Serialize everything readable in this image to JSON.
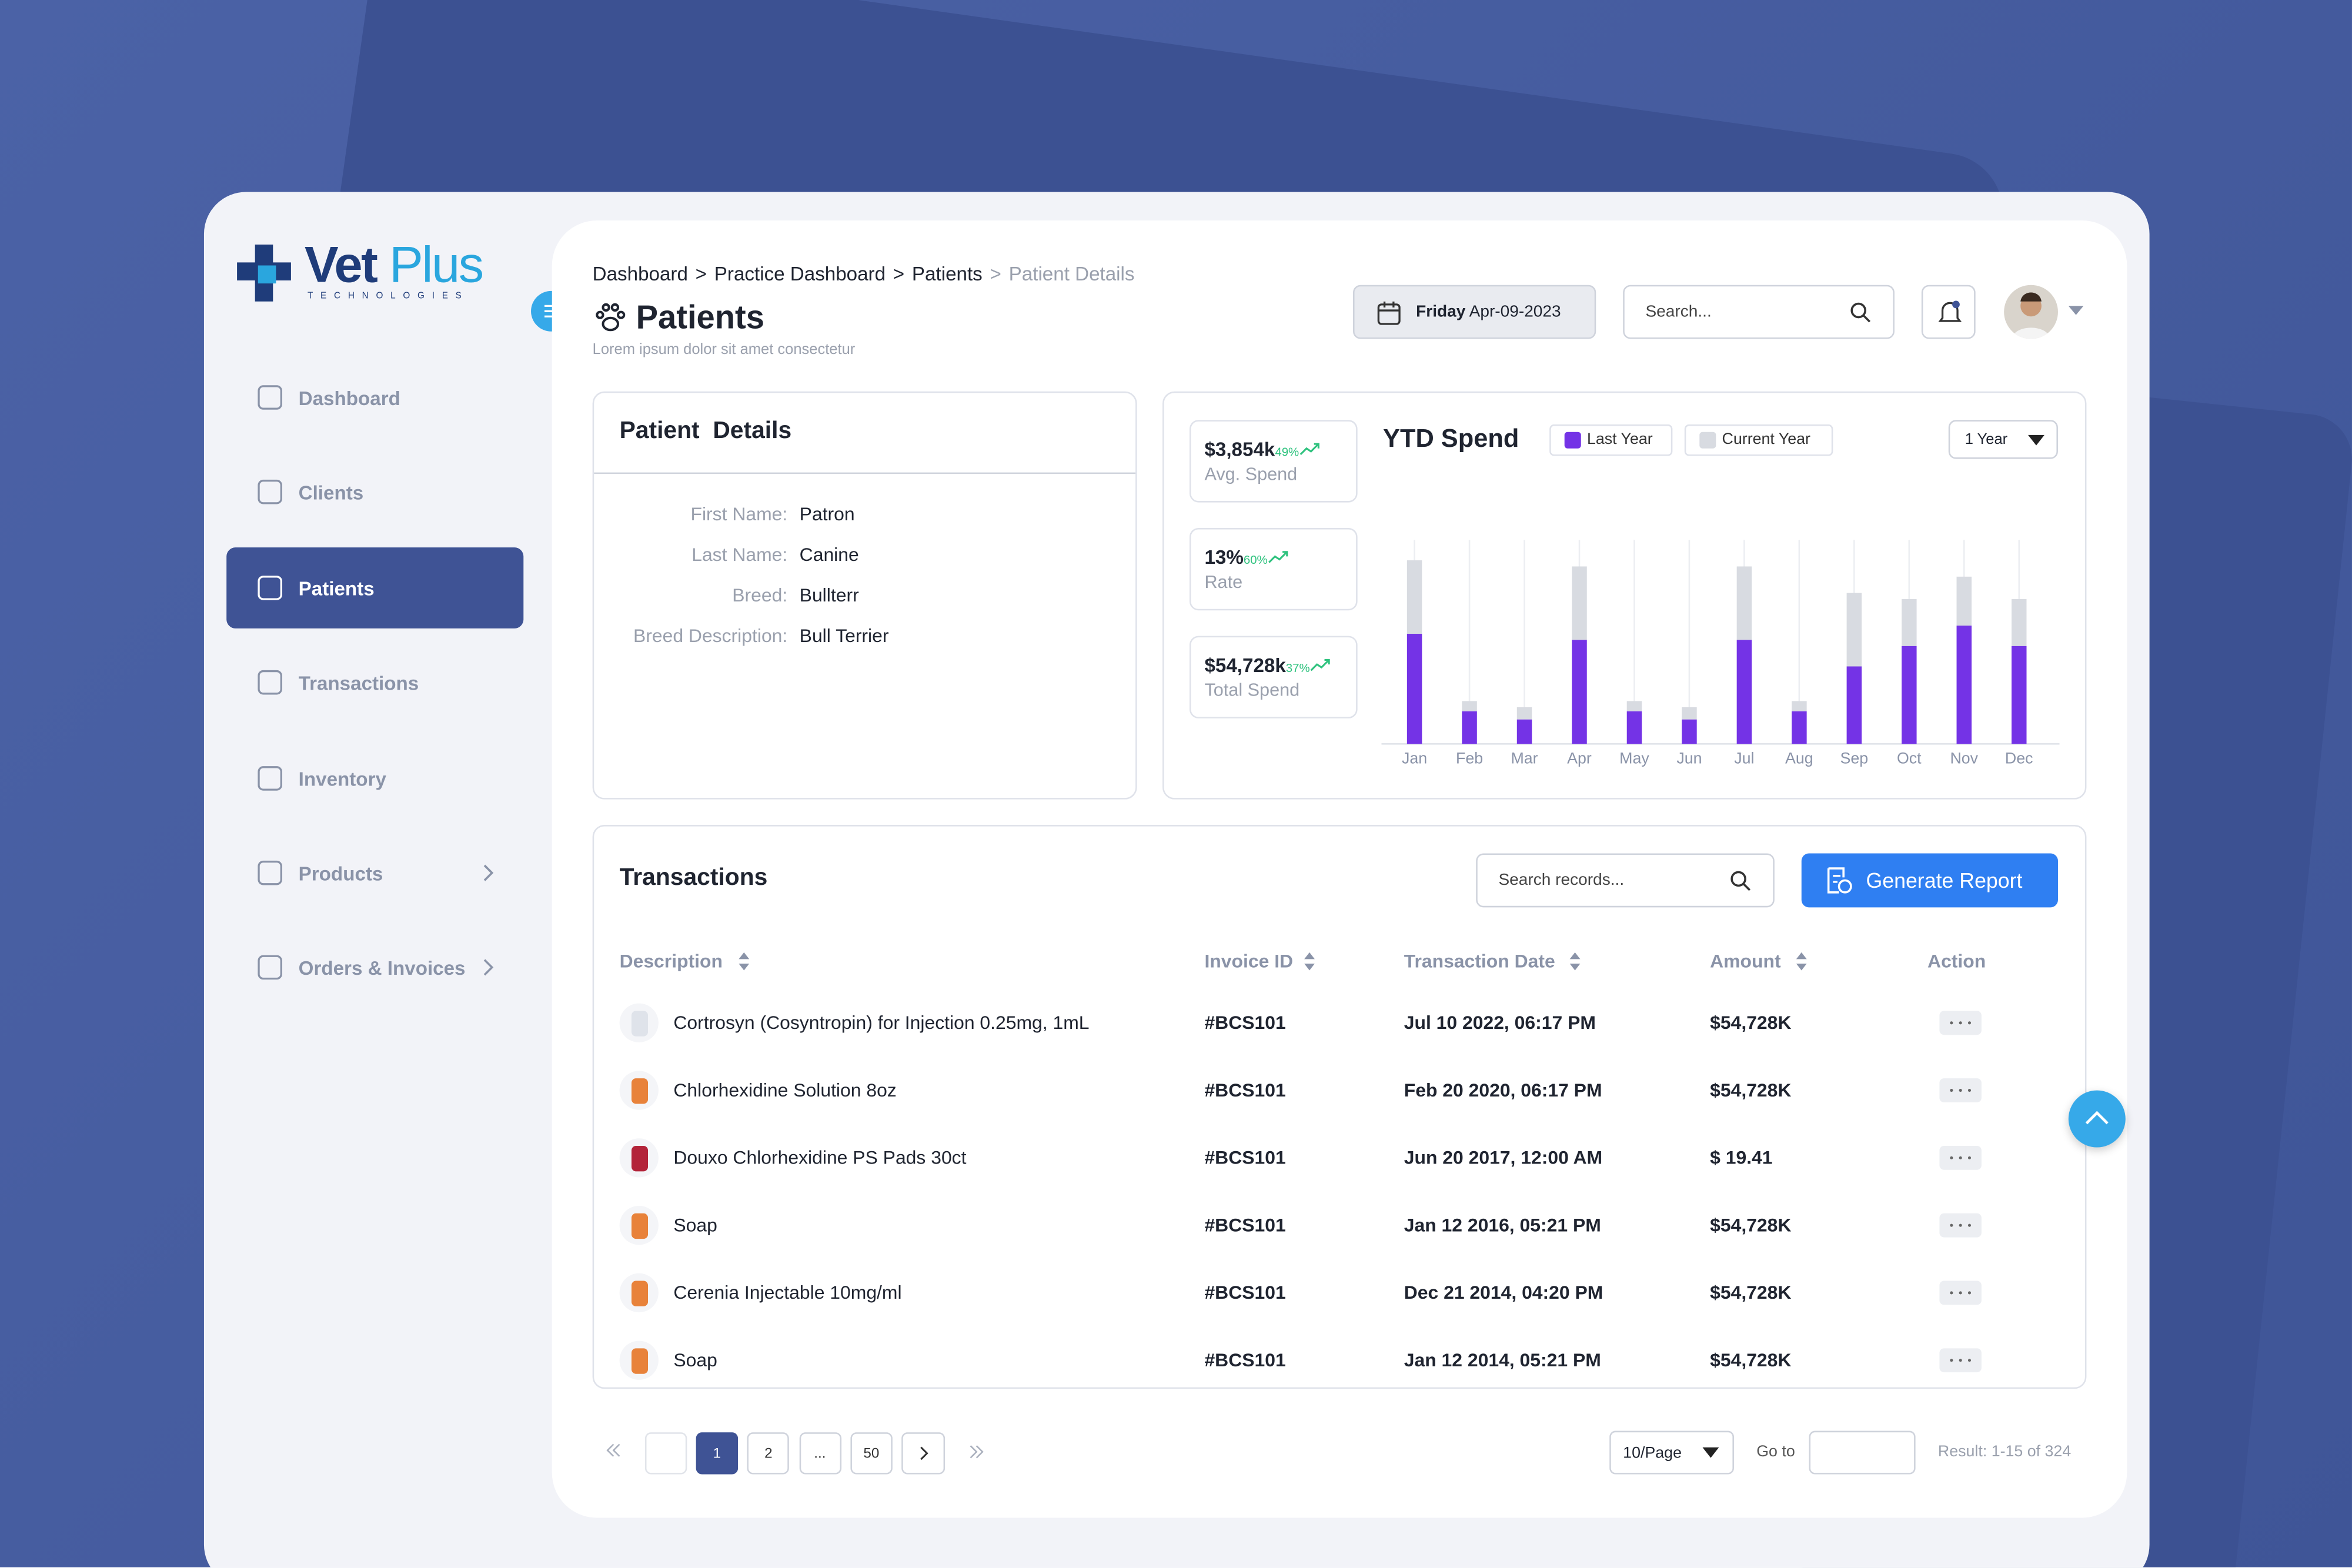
{
  "brand": {
    "name_main": "Vet",
    "name_accent": "Plus",
    "tagline": "TECHNOLOGIES"
  },
  "nav": [
    {
      "label": "Dashboard"
    },
    {
      "label": "Clients"
    },
    {
      "label": "Patients",
      "active": true
    },
    {
      "label": "Transactions"
    },
    {
      "label": "Inventory"
    },
    {
      "label": "Products",
      "submenu": true
    },
    {
      "label": "Orders & Invoices",
      "submenu": true
    }
  ],
  "breadcrumb": {
    "separator": ">",
    "items": [
      "Dashboard",
      "Practice Dashboard",
      "Patients",
      "Patient Details"
    ]
  },
  "header": {
    "title": "Patients",
    "subtitle": "Lorem ipsum dolor sit amet consectetur",
    "date_day": "Friday",
    "date": "Apr-09-2023",
    "search_placeholder": "Search..."
  },
  "patient_details": {
    "title": "Patient  Details",
    "fields": [
      {
        "label": "First Name:",
        "value": "Patron"
      },
      {
        "label": "Last Name:",
        "value": "Canine"
      },
      {
        "label": "Breed:",
        "value": "Bullterr"
      },
      {
        "label": "Breed Description:",
        "value": "Bull Terrier"
      }
    ]
  },
  "stats": [
    {
      "value": "$3,854k",
      "change": "49%",
      "label": "Avg. Spend"
    },
    {
      "value": "13%",
      "change": "60%",
      "label": "Rate"
    },
    {
      "value": "$54,728k",
      "change": "37%",
      "label": "Total Spend"
    }
  ],
  "chart_controls": {
    "period": "1 Year"
  },
  "chart_data": {
    "type": "bar",
    "stacked": true,
    "title": "YTD Spend",
    "categories": [
      "Jan",
      "Feb",
      "Mar",
      "Apr",
      "May",
      "Jun",
      "Jul",
      "Aug",
      "Sep",
      "Oct",
      "Nov",
      "Dec"
    ],
    "series": [
      {
        "name": "Last Year",
        "color": "#7433e6",
        "values": [
          54,
          16,
          12,
          51,
          16,
          12,
          51,
          16,
          38,
          48,
          58,
          48
        ]
      },
      {
        "name": "Current Year",
        "color": "#d8dbe1",
        "values": [
          36,
          5,
          6,
          36,
          5,
          6,
          36,
          5,
          36,
          23,
          24,
          23
        ]
      }
    ],
    "ylim": [
      0,
      100
    ]
  },
  "transactions": {
    "title": "Transactions",
    "search_placeholder": "Search records...",
    "button": "Generate Report",
    "columns": [
      "Description",
      "Invoice ID",
      "Transaction Date",
      "Amount",
      "Action"
    ],
    "rows": [
      [
        "Cortrosyn (Cosyntropin) for Injection 0.25mg, 1mL",
        "#BCS101",
        "Jul 10 2022, 06:17 PM",
        "$54,728K"
      ],
      [
        "Chlorhexidine Solution 8oz",
        "#BCS101",
        "Feb 20 2020, 06:17 PM",
        "$54,728K"
      ],
      [
        "Douxo Chlorhexidine PS Pads 30ct",
        "#BCS101",
        "Jun 20 2017, 12:00 AM",
        "$ 19.41"
      ],
      [
        "Soap",
        "#BCS101",
        "Jan 12 2016, 05:21 PM",
        "$54,728K"
      ],
      [
        "Cerenia Injectable 10mg/ml",
        "#BCS101",
        "Dec 21 2014, 04:20 PM",
        "$54,728K"
      ],
      [
        "Soap",
        "#BCS101",
        "Jan 12 2014, 05:21 PM",
        "$54,728K"
      ]
    ]
  },
  "pagination": {
    "pages": [
      "1",
      "2",
      "...",
      "50"
    ],
    "per_page": "10/Page",
    "goto_label": "Go to",
    "result": "Result: 1-15 of 324"
  }
}
